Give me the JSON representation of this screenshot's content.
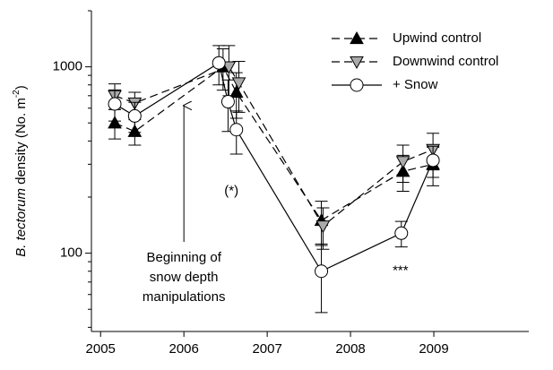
{
  "chart_data": {
    "type": "line",
    "log_y": true,
    "ylabel": [
      "B. tectorum",
      " density (No. m",
      "-2",
      ")"
    ],
    "xlim": [
      2004.89,
      2010.14
    ],
    "xticks": [
      2005,
      2006,
      2007,
      2008,
      2009
    ],
    "ylim": [
      38,
      2000
    ],
    "yticks": [
      100,
      1000
    ],
    "yminor_ticks": [
      40,
      50,
      60,
      70,
      80,
      90,
      200,
      300,
      400,
      500,
      600,
      700,
      800,
      900,
      2000
    ],
    "legend": "upper right",
    "series": [
      {
        "name": "Upwind control",
        "color": "#000000",
        "marker": "triangle-up",
        "marker_fill": "#000000",
        "dashed": true,
        "x": [
          2005.17,
          2005.41,
          2006.47,
          2006.63,
          2007.65,
          2008.63,
          2008.99
        ],
        "values": [
          500,
          450,
          1000,
          730,
          150,
          275,
          300
        ],
        "errors": [
          90,
          70,
          250,
          200,
          40,
          60,
          70
        ]
      },
      {
        "name": "Downwind control",
        "color": "#000000",
        "marker": "triangle-down",
        "marker_fill": "#aaaaaa",
        "dashed": true,
        "x": [
          2005.17,
          2005.41,
          2006.54,
          2006.66,
          2007.67,
          2008.63,
          2008.99
        ],
        "values": [
          700,
          640,
          1000,
          820,
          140,
          310,
          360
        ],
        "errors": [
          110,
          90,
          300,
          250,
          35,
          70,
          80
        ]
      },
      {
        "name": "+ Snow",
        "color": "#000000",
        "marker": "circle",
        "marker_fill": "#ffffff",
        "dashed": false,
        "x": [
          2005.17,
          2005.41,
          2006.42,
          2006.53,
          2006.63,
          2007.65,
          2008.61,
          2008.99
        ],
        "values": [
          632,
          545,
          1050,
          650,
          460,
          80,
          128,
          315
        ],
        "errors": [
          120,
          100,
          250,
          200,
          120,
          32,
          20,
          60
        ]
      }
    ],
    "annotations": [
      {
        "lines": [
          "Beginning of",
          "snow depth",
          "manipulations"
        ],
        "x": 2006,
        "arrow_from": 115,
        "arrow_to": 620
      },
      {
        "text": "(*)",
        "x": 2006.57,
        "y": 215
      },
      {
        "text": "***",
        "x": 2008.6,
        "y": 80
      }
    ]
  }
}
